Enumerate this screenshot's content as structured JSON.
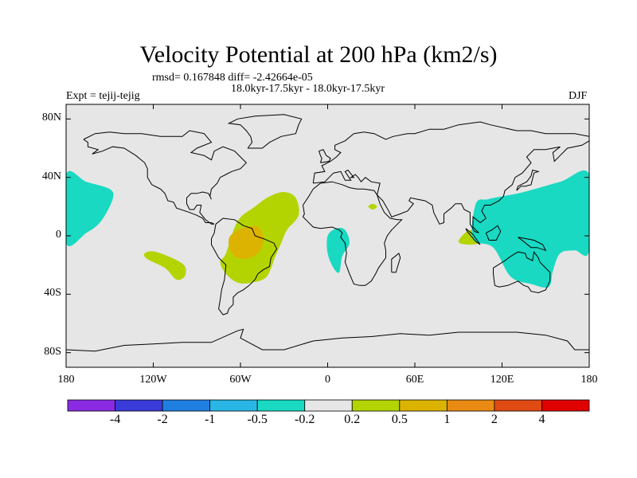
{
  "chart_data": {
    "type": "contour-map",
    "title": "Velocity Potential at 200 hPa (km2/s)",
    "stats_line": "rmsd= 0.167848 diff= -2.42664e-05",
    "period_line": "18.0kyr-17.5kyr - 18.0kyr-17.5kyr",
    "experiment_label": "Expt = tejij-tejig",
    "season_label": "DJF",
    "lon_range": [
      -180,
      180
    ],
    "lat_range": [
      -90,
      90
    ],
    "x_ticks": [
      {
        "lon": -180,
        "label": "180"
      },
      {
        "lon": -120,
        "label": "120W"
      },
      {
        "lon": -60,
        "label": "60W"
      },
      {
        "lon": 0,
        "label": "0"
      },
      {
        "lon": 60,
        "label": "60E"
      },
      {
        "lon": 120,
        "label": "120E"
      },
      {
        "lon": 180,
        "label": "180"
      }
    ],
    "y_ticks": [
      {
        "lat": 80,
        "label": "80N"
      },
      {
        "lat": 40,
        "label": "40N"
      },
      {
        "lat": 0,
        "label": "0"
      },
      {
        "lat": -40,
        "label": "40S"
      },
      {
        "lat": -80,
        "label": "80S"
      }
    ],
    "colorbar": {
      "colors": [
        "#8a2be2",
        "#3b3bd9",
        "#1f7fe0",
        "#29b6e6",
        "#19d9c2",
        "#e6e6e6",
        "#b4d400",
        "#dcb400",
        "#e88a14",
        "#e04b14",
        "#e00000"
      ],
      "levels": [
        "-4",
        "-2",
        "-1",
        "-0.5",
        "-0.2",
        "0.2",
        "0.5",
        "1",
        "2",
        "4"
      ]
    },
    "regions": [
      {
        "name": "south-america-positive",
        "level": "0.5",
        "color": "#b4d400",
        "points": [
          [
            -70,
            -12
          ],
          [
            -62,
            10
          ],
          [
            -50,
            20
          ],
          [
            -40,
            27
          ],
          [
            -30,
            30
          ],
          [
            -22,
            26
          ],
          [
            -20,
            14
          ],
          [
            -28,
            4
          ],
          [
            -32,
            -5
          ],
          [
            -36,
            -14
          ],
          [
            -42,
            -28
          ],
          [
            -52,
            -32
          ],
          [
            -62,
            -32
          ],
          [
            -70,
            -26
          ],
          [
            -74,
            -18
          ]
        ]
      },
      {
        "name": "south-america-core",
        "level": "1",
        "color": "#dcb400",
        "points": [
          [
            -68,
            -2
          ],
          [
            -62,
            4
          ],
          [
            -55,
            6
          ],
          [
            -48,
            6
          ],
          [
            -44,
            -2
          ],
          [
            -48,
            -12
          ],
          [
            -58,
            -16
          ],
          [
            -66,
            -12
          ]
        ]
      },
      {
        "name": "south-pacific-positive",
        "level": "0.2",
        "color": "#b4d400",
        "points": [
          [
            -126,
            -12
          ],
          [
            -118,
            -11
          ],
          [
            -100,
            -19
          ],
          [
            -98,
            -27
          ],
          [
            -104,
            -30
          ],
          [
            -112,
            -22
          ],
          [
            -124,
            -16
          ]
        ]
      },
      {
        "name": "africa-small-positive",
        "level": "0.2",
        "color": "#b4d400",
        "points": [
          [
            28,
            20
          ],
          [
            31,
            22
          ],
          [
            34,
            20
          ],
          [
            31,
            18
          ]
        ]
      },
      {
        "name": "indian-ocean-positive",
        "level": "0.2",
        "color": "#b4d400",
        "points": [
          [
            90,
            -4
          ],
          [
            96,
            3
          ],
          [
            104,
            4
          ],
          [
            108,
            0
          ],
          [
            104,
            -5
          ],
          [
            96,
            -6
          ]
        ]
      },
      {
        "name": "east-pacific-negative",
        "level": "-0.5",
        "color": "#19d9c2",
        "points": [
          [
            -180,
            42
          ],
          [
            -166,
            37
          ],
          [
            -150,
            32
          ],
          [
            -148,
            25
          ],
          [
            -156,
            10
          ],
          [
            -166,
            2
          ],
          [
            -180,
            -5
          ]
        ]
      },
      {
        "name": "atlantic-negative",
        "level": "-0.5",
        "color": "#19d9c2",
        "points": [
          [
            0,
            0
          ],
          [
            6,
            5
          ],
          [
            12,
            4
          ],
          [
            15,
            -5
          ],
          [
            10,
            -14
          ],
          [
            8,
            -25
          ],
          [
            4,
            -22
          ],
          [
            0,
            -12
          ]
        ]
      },
      {
        "name": "west-pacific-negative",
        "level": "-0.5",
        "color": "#19d9c2",
        "points": [
          [
            102,
            22
          ],
          [
            110,
            25
          ],
          [
            120,
            27
          ],
          [
            135,
            30
          ],
          [
            160,
            37
          ],
          [
            180,
            42
          ],
          [
            180,
            -10
          ],
          [
            170,
            -10
          ],
          [
            160,
            -12
          ],
          [
            155,
            -24
          ],
          [
            152,
            -35
          ],
          [
            140,
            -33
          ],
          [
            126,
            -28
          ],
          [
            114,
            -8
          ],
          [
            100,
            -2
          ]
        ]
      }
    ]
  }
}
